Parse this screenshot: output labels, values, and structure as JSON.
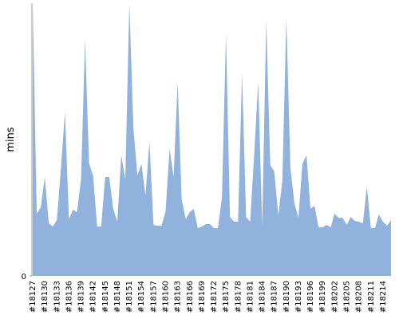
{
  "chart_data": {
    "type": "area",
    "y_label": "mins",
    "color": "#90b2dc",
    "ylim": [
      0,
      100
    ],
    "yticks": [
      0
    ],
    "categories": [
      "#18127",
      null,
      null,
      "#18130",
      null,
      null,
      "#18133",
      null,
      null,
      "#18136",
      null,
      null,
      "#18139",
      null,
      null,
      "#18142",
      null,
      null,
      "#18145",
      null,
      null,
      "#18148",
      null,
      null,
      "#18151",
      null,
      null,
      "#18154",
      null,
      null,
      "#18157",
      null,
      null,
      "#18160",
      null,
      null,
      "#18163",
      null,
      null,
      "#18166",
      null,
      null,
      "#18169",
      null,
      null,
      "#18172",
      null,
      null,
      "#18175",
      null,
      null,
      "#18178",
      null,
      null,
      "#18181",
      null,
      null,
      "#18184",
      null,
      null,
      "#18187",
      null,
      null,
      "#18190",
      null,
      null,
      "#18193",
      null,
      null,
      "#18196",
      null,
      null,
      "#18199",
      null,
      null,
      "#18202",
      null,
      null,
      "#18205",
      null,
      null,
      "#18208",
      null,
      null,
      "#18211",
      null,
      null,
      "#18214",
      null,
      null
    ],
    "values": [
      100,
      22.8,
      25.1,
      36.3,
      19.3,
      18.1,
      20.5,
      39.2,
      60.2,
      20.8,
      24.3,
      23.4,
      35.4,
      86.5,
      41.2,
      36.8,
      18.1,
      18.1,
      36.3,
      36.3,
      24.6,
      19.9,
      44.2,
      35.4,
      100,
      54.4,
      36.8,
      41.2,
      29.5,
      49.1,
      18.7,
      18.4,
      18.4,
      23.7,
      46.5,
      36.3,
      71.1,
      28.1,
      20.8,
      23.4,
      24.6,
      17.5,
      18.1,
      19.0,
      19.0,
      17.5,
      17.5,
      28.7,
      88.6,
      21.6,
      19.9,
      19.9,
      74.3,
      21.6,
      19.9,
      44.2,
      71.1,
      18.4,
      93.6,
      40.6,
      38.3,
      22.2,
      34.8,
      94.7,
      39.8,
      26.6,
      21.3,
      41.2,
      44.2,
      24.6,
      25.7,
      17.8,
      17.8,
      18.7,
      17.8,
      22.8,
      21.3,
      21.3,
      18.7,
      21.6,
      20.2,
      19.9,
      19.3,
      32.7,
      17.5,
      17.5,
      22.5,
      19.9,
      18.4,
      20.5
    ]
  }
}
